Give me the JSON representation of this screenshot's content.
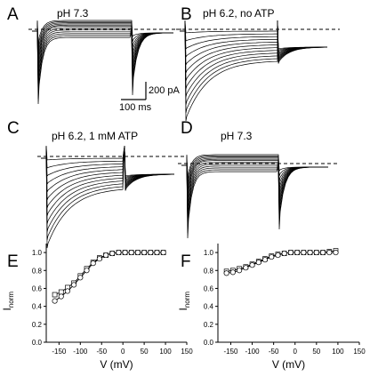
{
  "panels": [
    {
      "letter": "A",
      "condition": "pH 7.3",
      "kind": "ctrl"
    },
    {
      "letter": "B",
      "condition": "pH 6.2, no ATP",
      "kind": "acid"
    },
    {
      "letter": "C",
      "condition": "pH 6.2, 1 mM ATP",
      "kind": "acid"
    },
    {
      "letter": "D",
      "condition": "pH 7.3",
      "kind": "ctrl"
    }
  ],
  "scale_bar": {
    "current": "200 pA",
    "time": "100 ms"
  },
  "chart_data": [
    {
      "panel": "E",
      "type": "scatter",
      "xlabel": "V (mV)",
      "ylabel": "I",
      "ylabel_sub": "norm",
      "xlim": [
        -180,
        150
      ],
      "ylim": [
        0.0,
        1.1
      ],
      "xticks": [
        -150,
        -100,
        -50,
        0,
        50,
        100,
        150
      ],
      "yticks": [
        0.0,
        0.2,
        0.4,
        0.6,
        0.8,
        1.0
      ],
      "series": [
        {
          "marker": "square",
          "x": [
            -160,
            -145,
            -130,
            -115,
            -100,
            -85,
            -70,
            -55,
            -40,
            -25,
            -10,
            5,
            20,
            35,
            50,
            65,
            80,
            95
          ],
          "y": [
            0.53,
            0.56,
            0.61,
            0.66,
            0.74,
            0.82,
            0.89,
            0.94,
            0.97,
            0.99,
            1.0,
            1.0,
            1.0,
            1.0,
            1.0,
            1.0,
            1.0,
            1.0
          ]
        },
        {
          "marker": "circle",
          "x": [
            -160,
            -145,
            -130,
            -115,
            -100,
            -85,
            -70,
            -55,
            -40,
            -25,
            -10,
            5,
            20,
            35,
            50,
            65,
            80,
            95
          ],
          "y": [
            0.46,
            0.51,
            0.57,
            0.64,
            0.72,
            0.8,
            0.88,
            0.93,
            0.97,
            0.99,
            1.0,
            1.0,
            1.0,
            1.0,
            1.0,
            1.0,
            1.0,
            1.0
          ]
        }
      ]
    },
    {
      "panel": "F",
      "type": "scatter",
      "xlabel": "V (mV)",
      "ylabel": "I",
      "ylabel_sub": "norm",
      "xlim": [
        -180,
        150
      ],
      "ylim": [
        0.0,
        1.1
      ],
      "xticks": [
        -150,
        -100,
        -50,
        0,
        50,
        100,
        150
      ],
      "yticks": [
        0.0,
        0.2,
        0.4,
        0.6,
        0.8,
        1.0
      ],
      "series": [
        {
          "marker": "square",
          "x": [
            -160,
            -145,
            -130,
            -115,
            -100,
            -85,
            -70,
            -55,
            -40,
            -25,
            -10,
            5,
            20,
            35,
            50,
            65,
            80,
            95
          ],
          "y": [
            0.79,
            0.8,
            0.82,
            0.84,
            0.87,
            0.9,
            0.93,
            0.96,
            0.98,
            0.99,
            1.0,
            1.0,
            1.0,
            1.0,
            1.0,
            1.0,
            1.01,
            1.02
          ]
        },
        {
          "marker": "circle",
          "x": [
            -160,
            -145,
            -130,
            -115,
            -100,
            -85,
            -70,
            -55,
            -40,
            -25,
            -10,
            5,
            20,
            35,
            50,
            65,
            80,
            95
          ],
          "y": [
            0.77,
            0.78,
            0.8,
            0.83,
            0.86,
            0.89,
            0.92,
            0.95,
            0.97,
            0.99,
            1.0,
            1.0,
            1.0,
            1.0,
            1.0,
            1.0,
            1.0,
            1.0
          ]
        }
      ]
    }
  ]
}
